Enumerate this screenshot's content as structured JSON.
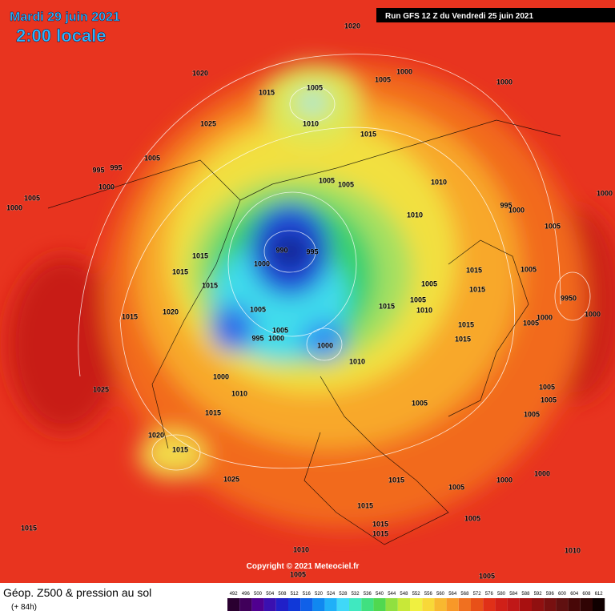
{
  "header": {
    "date": "Mardi 29 juin 2021",
    "time": "2:00 locale",
    "run": "Run GFS 12 Z du Vendredi 25 juin 2021"
  },
  "footer": {
    "copyright": "Copyright © 2021 Meteociel.fr",
    "title": "Géop. Z500 & pression au sol",
    "subtitle": "(+ 84h)"
  },
  "pressure_labels": [
    "1020",
    "1020",
    "1015",
    "1005",
    "1005",
    "1000",
    "1000",
    "1010",
    "1025",
    "1015",
    "1005",
    "995",
    "995",
    "1000",
    "1005",
    "1000",
    "1005",
    "1005",
    "1010",
    "1000",
    "995",
    "1000",
    "1010",
    "1005",
    "990",
    "995",
    "1000",
    "1015",
    "1015",
    "1015",
    "1015",
    "1005",
    "1015",
    "1005",
    "9950",
    "1005",
    "1015",
    "1010",
    "1005",
    "1020",
    "1015",
    "1000",
    "1000",
    "1005",
    "1015",
    "1005",
    "1015",
    "995",
    "1000",
    "1000",
    "1010",
    "1000",
    "1005",
    "1010",
    "1005",
    "1005",
    "1005",
    "1015",
    "1025",
    "1020",
    "1015",
    "1025",
    "1015",
    "1000",
    "1000",
    "1005",
    "1015",
    "1015",
    "1015",
    "1005",
    "1015",
    "1010",
    "1010",
    "1005",
    "1005"
  ],
  "colorbar": {
    "labels": [
      492,
      496,
      500,
      504,
      508,
      512,
      516,
      520,
      524,
      528,
      532,
      536,
      540,
      544,
      548,
      552,
      556,
      560,
      564,
      568,
      572,
      576,
      580,
      584,
      588,
      592,
      596,
      600,
      604,
      608,
      612
    ]
  }
}
